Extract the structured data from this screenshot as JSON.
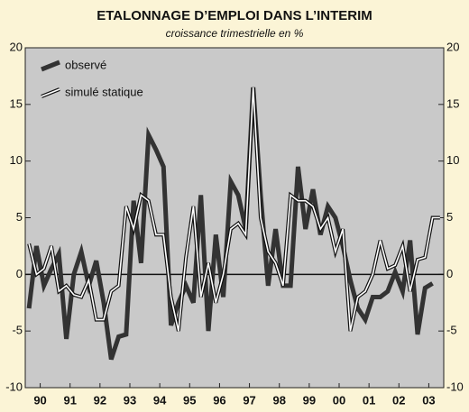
{
  "chart_data": {
    "type": "line",
    "title": "ETALONNAGE D’EMPLOI DANS L’INTERIM",
    "subtitle": "croissance trimestrielle en %",
    "x": [
      1990.125,
      1990.375,
      1990.625,
      1990.875,
      1991.125,
      1991.375,
      1991.625,
      1991.875,
      1992.125,
      1992.375,
      1992.625,
      1992.875,
      1993.125,
      1993.375,
      1993.625,
      1993.875,
      1994.125,
      1994.375,
      1994.625,
      1994.875,
      1995.125,
      1995.375,
      1995.625,
      1995.875,
      1996.125,
      1996.375,
      1996.625,
      1996.875,
      1997.125,
      1997.375,
      1997.625,
      1997.875,
      1998.125,
      1998.375,
      1998.625,
      1998.875,
      1999.125,
      1999.375,
      1999.625,
      1999.875,
      2000.125,
      2000.375,
      2000.625,
      2000.875,
      2001.125,
      2001.375,
      2001.625,
      2001.875,
      2002.125,
      2002.375,
      2002.625,
      2002.875,
      2003.125,
      2003.375,
      2003.625,
      2003.875
    ],
    "series": [
      {
        "name": "observé",
        "color": "#333333",
        "values": [
          -3,
          2.5,
          -1,
          0.5,
          1.8,
          -5.7,
          0,
          2,
          -1,
          1.2,
          -2.5,
          -7.5,
          -5.5,
          -5.3,
          6.5,
          1,
          12.3,
          11,
          9.5,
          -4.5,
          -2.5,
          -1,
          -2.5,
          7,
          -5,
          3.5,
          -2,
          8.2,
          7,
          4,
          16.5,
          7,
          -1,
          4,
          -1,
          -1,
          9.5,
          4,
          7.5,
          3.5,
          6,
          5,
          2.5,
          -0.5,
          -3,
          -4,
          -2,
          -2,
          -1.5,
          0.2,
          -1.5,
          3,
          -5.3,
          -1.2,
          -0.8,
          null
        ]
      },
      {
        "name": "simulé statique",
        "color": "#ffffff",
        "values": [
          2.7,
          0,
          0.5,
          2.5,
          -1.5,
          -1,
          -1.8,
          -2,
          -0.5,
          -4,
          -4,
          -1.5,
          -1,
          6,
          4,
          7,
          6.5,
          3.5,
          3.5,
          -2,
          -5,
          1.5,
          6,
          -2,
          1,
          -2.5,
          0,
          4,
          4.5,
          3.5,
          16.5,
          5,
          2,
          1,
          -1,
          7,
          6.5,
          6.5,
          6,
          4,
          5,
          2,
          4,
          -5,
          -2,
          -1.5,
          0,
          3,
          0.5,
          0.8,
          2.5,
          -1.5,
          1.3,
          1.5,
          5,
          5
        ]
      }
    ],
    "xlim": [
      1990,
      2004
    ],
    "xticks": [
      {
        "value": 1990.5,
        "label": "90"
      },
      {
        "value": 1991.5,
        "label": "91"
      },
      {
        "value": 1992.5,
        "label": "92"
      },
      {
        "value": 1993.5,
        "label": "93"
      },
      {
        "value": 1994.5,
        "label": "94"
      },
      {
        "value": 1995.5,
        "label": "95"
      },
      {
        "value": 1996.5,
        "label": "96"
      },
      {
        "value": 1997.5,
        "label": "97"
      },
      {
        "value": 1998.5,
        "label": "98"
      },
      {
        "value": 1999.5,
        "label": "99"
      },
      {
        "value": 2000.5,
        "label": "00"
      },
      {
        "value": 2001.5,
        "label": "01"
      },
      {
        "value": 2002.5,
        "label": "02"
      },
      {
        "value": 2003.5,
        "label": "03"
      }
    ],
    "ylim": [
      -10,
      20
    ],
    "yticks": [
      -10,
      -5,
      0,
      5,
      10,
      15,
      20
    ],
    "legend": "upper left"
  }
}
